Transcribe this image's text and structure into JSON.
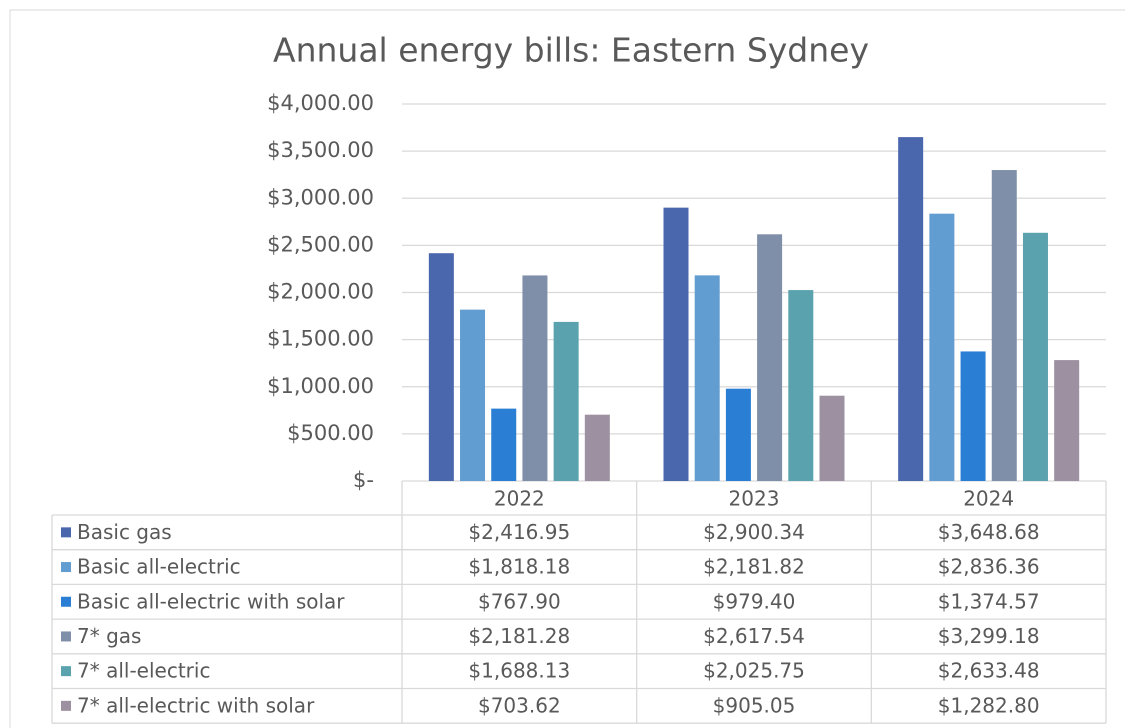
{
  "chart_data": {
    "type": "bar",
    "title": "Annual energy bills: Eastern Sydney",
    "categories": [
      "2022",
      "2023",
      "2024"
    ],
    "series": [
      {
        "name": "Basic gas",
        "color": "#4a66ac",
        "values": [
          2416.95,
          2900.34,
          3648.68
        ],
        "value_labels": [
          "$2,416.95",
          "$2,900.34",
          "$3,648.68"
        ]
      },
      {
        "name": "Basic all-electric",
        "color": "#629dd1",
        "values": [
          1818.18,
          2181.82,
          2836.36
        ],
        "value_labels": [
          "$1,818.18",
          "$2,181.82",
          "$2,836.36"
        ]
      },
      {
        "name": "Basic all-electric with solar",
        "color": "#2a7fd5",
        "values": [
          767.9,
          979.4,
          1374.57
        ],
        "value_labels": [
          "$767.90",
          "$979.40",
          "$1,374.57"
        ]
      },
      {
        "name": "7* gas",
        "color": "#7f8fa9",
        "values": [
          2181.28,
          2617.54,
          3299.18
        ],
        "value_labels": [
          "$2,181.28",
          "$2,617.54",
          "$3,299.18"
        ]
      },
      {
        "name": "7* all-electric",
        "color": "#5aa2ae",
        "values": [
          1688.13,
          2025.75,
          2633.48
        ],
        "value_labels": [
          "$1,688.13",
          "$2,025.75",
          "$2,633.48"
        ]
      },
      {
        "name": "7* all-electric with solar",
        "color": "#9d90a0",
        "values": [
          703.62,
          905.05,
          1282.8
        ],
        "value_labels": [
          "$703.62",
          "$905.05",
          "$1,282.80"
        ]
      }
    ],
    "ylim": [
      0,
      4000
    ],
    "yticks": [
      {
        "value": 0,
        "label": "$-"
      },
      {
        "value": 500,
        "label": "$500.00"
      },
      {
        "value": 1000,
        "label": "$1,000.00"
      },
      {
        "value": 1500,
        "label": "$1,500.00"
      },
      {
        "value": 2000,
        "label": "$2,000.00"
      },
      {
        "value": 2500,
        "label": "$2,500.00"
      },
      {
        "value": 3000,
        "label": "$3,000.00"
      },
      {
        "value": 3500,
        "label": "$3,500.00"
      },
      {
        "value": 4000,
        "label": "$4,000.00"
      }
    ],
    "grid": true
  }
}
